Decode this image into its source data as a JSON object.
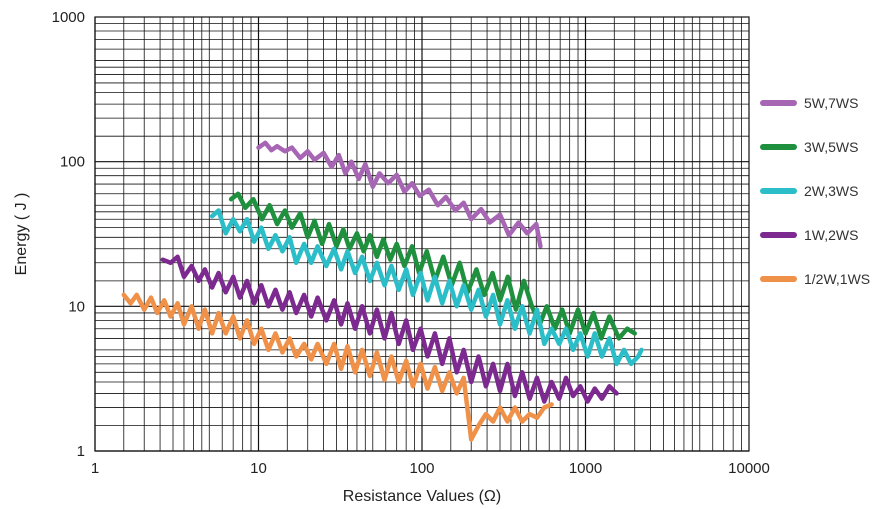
{
  "chart_data": {
    "type": "line",
    "title": "",
    "xlabel": "Resistance Values  (Ω)",
    "ylabel": "Energy ( J )",
    "xscale": "log",
    "yscale": "log",
    "xlim": [
      1,
      10000
    ],
    "ylim": [
      1,
      1000
    ],
    "xticks": [
      "1",
      "10",
      "100",
      "1000",
      "10000"
    ],
    "yticks": [
      "1",
      "10",
      "100",
      "1000"
    ],
    "grid": true,
    "legend_position": "right",
    "series": [
      {
        "name": "5W,7WS",
        "color": "#a766b4",
        "x": [
          10,
          11,
          12,
          13,
          14.5,
          16,
          18,
          20,
          22,
          25,
          28,
          31,
          34,
          37,
          41,
          45,
          50,
          55,
          62,
          70,
          78,
          87,
          97,
          110,
          125,
          140,
          160,
          180,
          200,
          230,
          260,
          300,
          340,
          390,
          440,
          500,
          530
        ],
        "y": [
          125,
          135,
          120,
          128,
          118,
          125,
          106,
          118,
          103,
          115,
          92,
          111,
          83,
          100,
          76,
          96,
          67,
          83,
          71,
          81,
          62,
          71,
          58,
          64,
          50,
          57,
          46,
          52,
          40,
          47,
          38,
          43,
          31,
          38,
          32,
          37,
          26
        ]
      },
      {
        "name": "3W,5WS",
        "color": "#1f913e",
        "x": [
          6.8,
          7.5,
          8.3,
          9.3,
          10.5,
          11.7,
          13,
          14.5,
          16,
          18,
          20,
          22,
          24.5,
          27,
          30,
          33,
          36,
          40,
          44,
          48,
          53,
          58,
          64,
          70,
          78,
          87,
          96,
          107,
          120,
          135,
          152,
          170,
          190,
          215,
          240,
          270,
          300,
          335,
          375,
          420,
          470,
          525,
          580,
          650,
          720,
          800,
          900,
          1000,
          1120,
          1250,
          1400,
          1600,
          1800,
          2000
        ],
        "y": [
          55,
          60,
          48,
          55,
          40,
          50,
          37,
          46,
          35,
          44,
          30,
          39,
          27,
          37,
          26,
          34,
          25,
          32,
          24,
          31,
          22,
          29,
          21,
          27,
          19,
          26,
          17,
          24,
          15,
          22,
          14,
          20,
          12.5,
          18,
          12,
          17,
          11,
          16,
          9.5,
          15,
          10,
          7.5,
          10,
          7,
          9.5,
          6.5,
          9.5,
          6.5,
          9,
          6,
          8.5,
          6,
          7,
          6.5
        ]
      },
      {
        "name": "2W,3WS",
        "color": "#2bbec8",
        "x": [
          5.2,
          5.7,
          6.3,
          7,
          7.7,
          8.5,
          9.4,
          10.4,
          11.5,
          12.7,
          14,
          15.5,
          17,
          19,
          21,
          23,
          26,
          29,
          32,
          35,
          39,
          43,
          48,
          53,
          59,
          65,
          72,
          80,
          88,
          98,
          108,
          120,
          133,
          147,
          163,
          180,
          200,
          222,
          246,
          272,
          300,
          333,
          370,
          410,
          455,
          505,
          560,
          620,
          690,
          760,
          840,
          930,
          1030,
          1140,
          1260,
          1400,
          1550,
          1720,
          1900,
          2100,
          2200
        ],
        "y": [
          42,
          46,
          32,
          40,
          33,
          40,
          28,
          35,
          25,
          31,
          24,
          30,
          20,
          27,
          20,
          26,
          19,
          25,
          18,
          24,
          17,
          22,
          15,
          20,
          14,
          19,
          13,
          18,
          12,
          17,
          11,
          16,
          10.5,
          15,
          10,
          14,
          9.5,
          13,
          8.5,
          12,
          7.5,
          11,
          7,
          10,
          6.5,
          9.5,
          5.5,
          7,
          5.5,
          7,
          5,
          6.5,
          4.5,
          6.5,
          4.5,
          6,
          4,
          5,
          4,
          4.5,
          5
        ]
      },
      {
        "name": "1W,2WS",
        "color": "#7d2a90",
        "x": [
          2.6,
          2.9,
          3.2,
          3.5,
          3.9,
          4.3,
          4.7,
          5.2,
          5.7,
          6.3,
          7,
          7.7,
          8.5,
          9.4,
          10.4,
          11.5,
          12.7,
          14,
          15.5,
          17,
          19,
          21,
          23,
          26,
          29,
          32,
          35,
          39,
          43,
          48,
          53,
          59,
          65,
          72,
          80,
          88,
          98,
          108,
          120,
          133,
          147,
          163,
          180,
          200,
          222,
          246,
          272,
          300,
          333,
          370,
          410,
          455,
          505,
          560,
          620,
          690,
          760,
          840,
          930,
          1030,
          1140,
          1260,
          1400,
          1550
        ],
        "y": [
          21,
          20,
          22,
          16,
          19,
          15,
          18,
          13.5,
          17,
          12.5,
          16,
          11.5,
          15,
          10.5,
          14,
          10,
          13,
          9.5,
          12.5,
          9,
          12,
          8.5,
          11.5,
          8,
          11,
          7.5,
          10.5,
          7,
          10,
          6.5,
          9.5,
          6,
          9,
          5.5,
          8,
          5,
          7,
          4.5,
          6.5,
          4,
          6,
          3.5,
          5,
          3,
          4.5,
          2.8,
          4,
          2.6,
          4,
          2.4,
          3.5,
          2.3,
          3.2,
          2.2,
          3,
          2.3,
          3.2,
          2.4,
          2.8,
          2.2,
          2.7,
          2.3,
          2.8,
          2.5
        ]
      },
      {
        "name": "1/2W,1WS",
        "color": "#f0914a",
        "x": [
          1.5,
          1.65,
          1.8,
          2,
          2.2,
          2.4,
          2.65,
          2.9,
          3.2,
          3.5,
          3.9,
          4.3,
          4.7,
          5.2,
          5.7,
          6.3,
          7,
          7.7,
          8.5,
          9.4,
          10.4,
          11.5,
          12.7,
          14,
          15.5,
          17,
          19,
          21,
          23,
          26,
          29,
          32,
          35,
          39,
          43,
          48,
          53,
          59,
          65,
          72,
          80,
          88,
          98,
          108,
          120,
          133,
          147,
          163,
          180,
          200,
          222,
          246,
          272,
          300,
          333,
          370,
          410,
          455,
          505,
          560,
          620
        ],
        "y": [
          12,
          10.5,
          12,
          9.5,
          11.5,
          9,
          11,
          8.5,
          10.5,
          7.5,
          10,
          7,
          9.5,
          6.5,
          9,
          6.5,
          8.5,
          6,
          8,
          5.5,
          7,
          5,
          6.5,
          4.8,
          6,
          4.5,
          5.5,
          4.3,
          5.5,
          4,
          5.5,
          3.7,
          5.3,
          3.5,
          5,
          3.3,
          4.8,
          3.1,
          4.5,
          3,
          4.2,
          2.8,
          4,
          2.7,
          3.8,
          2.6,
          3.5,
          2.5,
          3.2,
          1.2,
          1.5,
          1.8,
          1.6,
          2,
          1.6,
          2,
          1.6,
          1.8,
          1.7,
          2,
          2.1
        ]
      }
    ]
  }
}
